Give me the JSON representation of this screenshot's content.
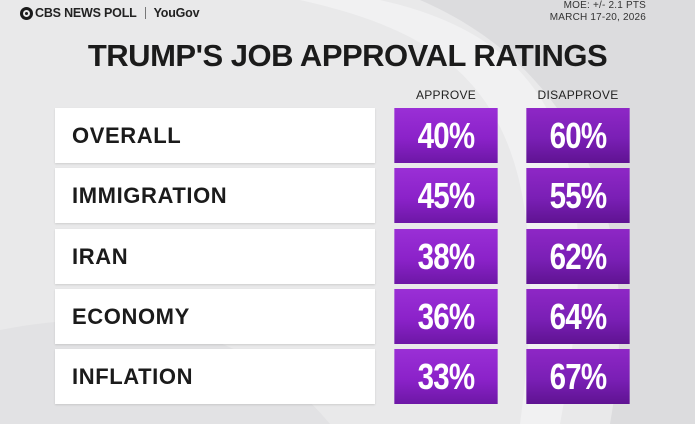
{
  "header": {
    "brand": "CBS NEWS POLL",
    "pollster": "YouGov",
    "moe": "MOE: +/- 2.1 PTS",
    "dates": "MARCH 17-20, 2026"
  },
  "colors": {
    "approve": "#8b22c9",
    "disapprove": "#7a1fb5",
    "background": "#e9e9ea"
  },
  "chart_data": {
    "type": "table",
    "title": "TRUMP'S JOB APPROVAL RATINGS",
    "columns": [
      "APPROVE",
      "DISAPPROVE"
    ],
    "rows": [
      {
        "label": "OVERALL",
        "approve": "40%",
        "disapprove": "60%"
      },
      {
        "label": "IMMIGRATION",
        "approve": "45%",
        "disapprove": "55%"
      },
      {
        "label": "IRAN",
        "approve": "38%",
        "disapprove": "62%"
      },
      {
        "label": "ECONOMY",
        "approve": "36%",
        "disapprove": "64%"
      },
      {
        "label": "INFLATION",
        "approve": "33%",
        "disapprove": "67%"
      }
    ]
  }
}
